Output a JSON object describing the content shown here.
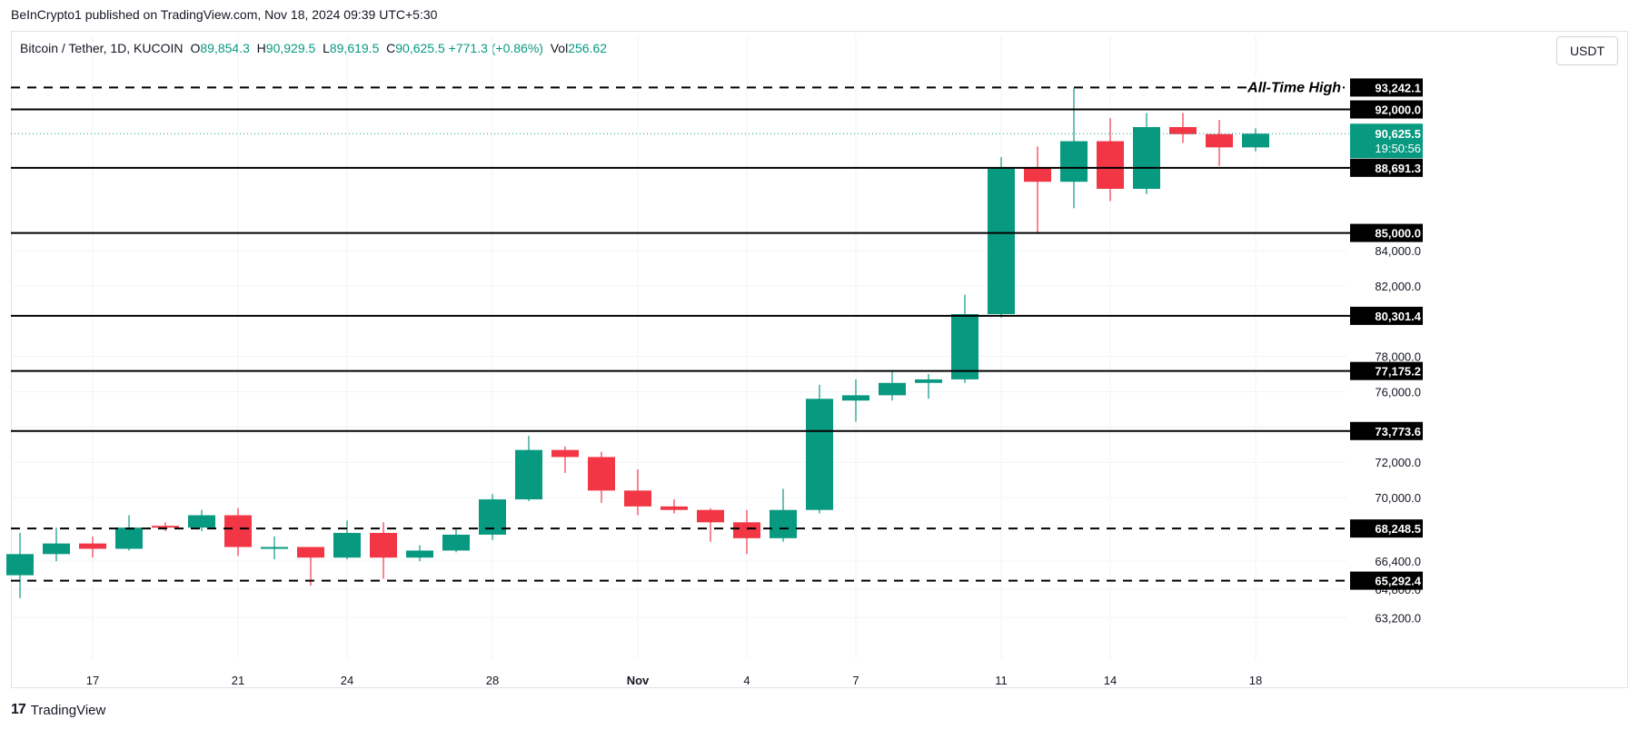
{
  "header": {
    "publisher_line": "BeInCrypto1 published on TradingView.com, Nov 18, 2024 09:39 UTC+5:30"
  },
  "legend": {
    "symbol": "Bitcoin / Tether, 1D, KUCOIN",
    "o_key": "O",
    "o_val": "89,854.3",
    "h_key": "H",
    "h_val": "90,929.5",
    "l_key": "L",
    "l_val": "89,619.5",
    "c_key": "C",
    "c_val": "90,625.5",
    "change": "+771.3 (+0.86%)",
    "vol_key": "Vol",
    "vol_val": "256.62"
  },
  "currency_button": "USDT",
  "footer": {
    "brand": "TradingView",
    "logo_glyph": "17"
  },
  "colors": {
    "up": "#089981",
    "down": "#f23645",
    "grid": "#f0f3fa",
    "text": "#131722"
  },
  "chart_data": {
    "type": "candlestick",
    "title": "",
    "xlabel": "",
    "ylabel": "",
    "ylim": [
      62700,
      94600
    ],
    "y_ticks": [
      63200,
      64800,
      66400,
      70000,
      72000,
      74000,
      76000,
      78000,
      82000,
      84000
    ],
    "y_tick_labels": [
      "63,200.0",
      "64,800.0",
      "66,400.0",
      "70,000.0",
      "72,000.0",
      "74,000.0",
      "76,000.0",
      "78,000.0",
      "82,000.0",
      "84,000.0"
    ],
    "x_tick_labels": [
      {
        "day": 17,
        "label": "17"
      },
      {
        "day": 21,
        "label": "21"
      },
      {
        "day": 24,
        "label": "24"
      },
      {
        "day": 28,
        "label": "28"
      },
      {
        "day": 32,
        "label": "Nov"
      },
      {
        "day": 35,
        "label": "4"
      },
      {
        "day": 38,
        "label": "7"
      },
      {
        "day": 42,
        "label": "11"
      },
      {
        "day": 45,
        "label": "14"
      },
      {
        "day": 49,
        "label": "18"
      }
    ],
    "day_index_note": "days counted from October 2024; 32 = Nov 1, 49 = Nov 18",
    "candles": [
      {
        "day": 15,
        "o": 65600,
        "h": 68000,
        "l": 64300,
        "c": 66800
      },
      {
        "day": 16,
        "o": 66800,
        "h": 68300,
        "l": 66400,
        "c": 67400
      },
      {
        "day": 17,
        "o": 67400,
        "h": 67800,
        "l": 66600,
        "c": 67100
      },
      {
        "day": 18,
        "o": 67100,
        "h": 69000,
        "l": 67000,
        "c": 68300
      },
      {
        "day": 19,
        "o": 68400,
        "h": 68600,
        "l": 68100,
        "c": 68300
      },
      {
        "day": 20,
        "o": 68300,
        "h": 69300,
        "l": 68100,
        "c": 69000
      },
      {
        "day": 21,
        "o": 69000,
        "h": 69400,
        "l": 66700,
        "c": 67200
      },
      {
        "day": 22,
        "o": 67200,
        "h": 67800,
        "l": 66500,
        "c": 67200
      },
      {
        "day": 23,
        "o": 67200,
        "h": 67200,
        "l": 65000,
        "c": 66600
      },
      {
        "day": 24,
        "o": 66600,
        "h": 68700,
        "l": 66500,
        "c": 68000
      },
      {
        "day": 25,
        "o": 68000,
        "h": 68600,
        "l": 65400,
        "c": 66600
      },
      {
        "day": 26,
        "o": 66600,
        "h": 67300,
        "l": 66400,
        "c": 67000
      },
      {
        "day": 27,
        "o": 67000,
        "h": 68200,
        "l": 66900,
        "c": 67900
      },
      {
        "day": 28,
        "o": 67900,
        "h": 70200,
        "l": 67600,
        "c": 69900
      },
      {
        "day": 29,
        "o": 69900,
        "h": 73500,
        "l": 69800,
        "c": 72700
      },
      {
        "day": 30,
        "o": 72700,
        "h": 72900,
        "l": 71400,
        "c": 72300
      },
      {
        "day": 31,
        "o": 72300,
        "h": 72600,
        "l": 69700,
        "c": 70400
      },
      {
        "day": 32,
        "o": 70400,
        "h": 71600,
        "l": 69000,
        "c": 69500
      },
      {
        "day": 33,
        "o": 69500,
        "h": 69900,
        "l": 69100,
        "c": 69300
      },
      {
        "day": 34,
        "o": 69300,
        "h": 69400,
        "l": 67500,
        "c": 68600
      },
      {
        "day": 35,
        "o": 68600,
        "h": 69300,
        "l": 66800,
        "c": 67700
      },
      {
        "day": 36,
        "o": 67700,
        "h": 70500,
        "l": 67500,
        "c": 69300
      },
      {
        "day": 37,
        "o": 69300,
        "h": 76400,
        "l": 69100,
        "c": 75600
      },
      {
        "day": 38,
        "o": 75500,
        "h": 76700,
        "l": 74300,
        "c": 75800
      },
      {
        "day": 39,
        "o": 75800,
        "h": 77200,
        "l": 75500,
        "c": 76500
      },
      {
        "day": 40,
        "o": 76500,
        "h": 77000,
        "l": 75600,
        "c": 76700
      },
      {
        "day": 41,
        "o": 76700,
        "h": 81500,
        "l": 76500,
        "c": 80400
      },
      {
        "day": 42,
        "o": 80400,
        "h": 89300,
        "l": 80200,
        "c": 88700
      },
      {
        "day": 43,
        "o": 88700,
        "h": 89900,
        "l": 85000,
        "c": 87900
      },
      {
        "day": 44,
        "o": 87900,
        "h": 93200,
        "l": 86400,
        "c": 90200
      },
      {
        "day": 45,
        "o": 90200,
        "h": 91500,
        "l": 86800,
        "c": 87500
      },
      {
        "day": 46,
        "o": 87500,
        "h": 91800,
        "l": 87200,
        "c": 91000
      },
      {
        "day": 47,
        "o": 91000,
        "h": 91800,
        "l": 90100,
        "c": 90600
      },
      {
        "day": 48,
        "o": 90600,
        "h": 91400,
        "l": 88800,
        "c": 89850
      },
      {
        "day": 49,
        "o": 89850,
        "h": 90930,
        "l": 89620,
        "c": 90625
      }
    ],
    "levels": [
      {
        "price": 93242.1,
        "label": "93,242.1",
        "style": "dashed"
      },
      {
        "price": 92000.0,
        "label": "92,000.0",
        "style": "solid"
      },
      {
        "price": 88691.3,
        "label": "88,691.3",
        "style": "solid"
      },
      {
        "price": 85000.0,
        "label": "85,000.0",
        "style": "solid"
      },
      {
        "price": 80301.4,
        "label": "80,301.4",
        "style": "solid"
      },
      {
        "price": 77175.2,
        "label": "77,175.2",
        "style": "solid"
      },
      {
        "price": 73773.6,
        "label": "73,773.6",
        "style": "solid"
      },
      {
        "price": 68248.5,
        "label": "68,248.5",
        "style": "dashed"
      },
      {
        "price": 65292.4,
        "label": "65,292.4",
        "style": "dashed"
      }
    ],
    "annotation": {
      "text": "All-Time High",
      "price": 93242.1
    },
    "current_price": {
      "price": 90625.5,
      "label": "90,625.5",
      "countdown": "19:50:56"
    }
  }
}
